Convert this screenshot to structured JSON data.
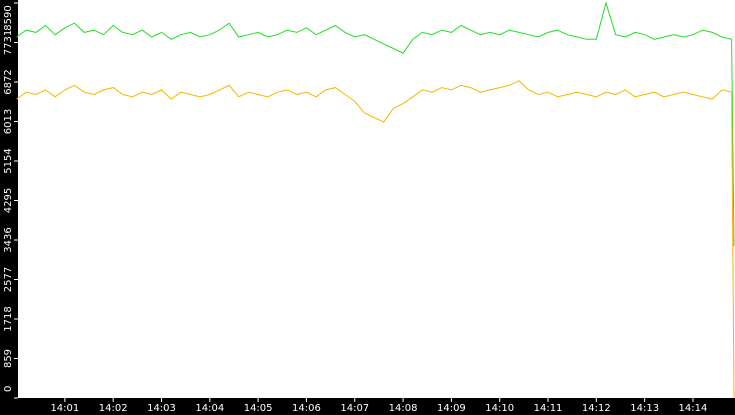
{
  "chart_data": {
    "type": "line",
    "x": [
      0,
      0.2,
      0.4,
      0.6,
      0.8,
      1,
      1.2,
      1.4,
      1.6,
      1.8,
      2,
      2.2,
      2.4,
      2.6,
      2.8,
      3,
      3.2,
      3.4,
      3.6,
      3.8,
      4,
      4.2,
      4.4,
      4.6,
      4.8,
      5,
      5.2,
      5.4,
      5.6,
      5.8,
      6,
      6.2,
      6.4,
      6.6,
      6.8,
      7,
      7.2,
      7.4,
      7.6,
      7.8,
      8,
      8.2,
      8.4,
      8.6,
      8.8,
      9,
      9.2,
      9.4,
      9.6,
      9.8,
      10,
      10.2,
      10.4,
      10.6,
      10.8,
      11,
      11.2,
      11.4,
      11.6,
      11.8,
      12,
      12.2,
      12.4,
      12.6,
      12.8,
      13,
      13.2,
      13.4,
      13.6,
      13.8,
      14,
      14.2,
      14.4,
      14.6,
      14.8,
      14.85
    ],
    "series": [
      {
        "color": "#22dd22",
        "values": [
          7850,
          8000,
          7950,
          8100,
          7900,
          8050,
          8150,
          7950,
          8000,
          7900,
          8100,
          7950,
          7900,
          8000,
          7850,
          7950,
          7800,
          7900,
          7950,
          7850,
          7900,
          8000,
          8150,
          7850,
          7900,
          7950,
          7850,
          7900,
          8000,
          7950,
          8050,
          7900,
          8000,
          8100,
          7950,
          7850,
          7900,
          7800,
          7700,
          7600,
          7500,
          7800,
          7950,
          7900,
          8000,
          7950,
          8100,
          8000,
          7900,
          7950,
          7900,
          8000,
          7950,
          7900,
          7850,
          7950,
          8000,
          7900,
          7850,
          7800,
          7800,
          8590,
          7900,
          7850,
          7950,
          7900,
          7800,
          7850,
          7900,
          7850,
          7900,
          8000,
          7950,
          7850,
          7800,
          3300
        ]
      },
      {
        "color": "#f0b800",
        "values": [
          6500,
          6650,
          6600,
          6700,
          6550,
          6700,
          6800,
          6650,
          6600,
          6700,
          6750,
          6600,
          6550,
          6650,
          6600,
          6700,
          6500,
          6650,
          6600,
          6550,
          6600,
          6700,
          6800,
          6550,
          6650,
          6600,
          6550,
          6650,
          6700,
          6600,
          6650,
          6550,
          6700,
          6750,
          6600,
          6450,
          6200,
          6100,
          6000,
          6300,
          6400,
          6550,
          6700,
          6650,
          6750,
          6700,
          6800,
          6750,
          6650,
          6700,
          6750,
          6800,
          6900,
          6700,
          6600,
          6650,
          6550,
          6600,
          6650,
          6600,
          6550,
          6650,
          6600,
          6700,
          6550,
          6600,
          6650,
          6550,
          6600,
          6650,
          6600,
          6550,
          6500,
          6700,
          6650,
          0
        ]
      }
    ],
    "xlim": [
      0.03,
      14.87
    ],
    "xticks": [
      {
        "value": 1,
        "label": "14:01"
      },
      {
        "value": 2,
        "label": "14:02"
      },
      {
        "value": 3,
        "label": "14:03"
      },
      {
        "value": 4,
        "label": "14:04"
      },
      {
        "value": 5,
        "label": "14:05"
      },
      {
        "value": 6,
        "label": "14:06"
      },
      {
        "value": 7,
        "label": "14:07"
      },
      {
        "value": 8,
        "label": "14:08"
      },
      {
        "value": 9,
        "label": "14:09"
      },
      {
        "value": 10,
        "label": "14:10"
      },
      {
        "value": 11,
        "label": "14:11"
      },
      {
        "value": 12,
        "label": "14:12"
      },
      {
        "value": 13,
        "label": "14:13"
      },
      {
        "value": 14,
        "label": "14:14"
      }
    ],
    "ylim": [
      0,
      8590
    ],
    "yticks": [
      0,
      859,
      1718,
      2577,
      3436,
      4295,
      5154,
      6013,
      6872,
      7731,
      8590
    ]
  }
}
